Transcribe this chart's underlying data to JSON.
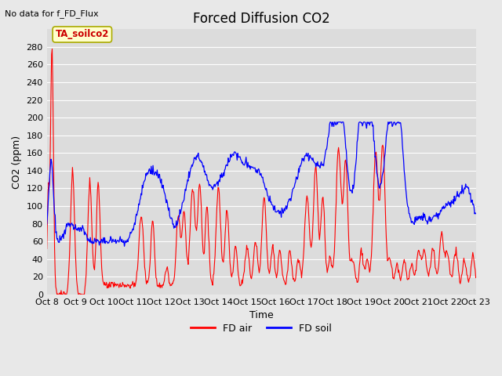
{
  "title": "Forced Diffusion CO2",
  "top_left_text": "No data for f_FD_Flux",
  "annotation_text": "TA_soilco2",
  "xlabel": "Time",
  "ylabel": "CO2 (ppm)",
  "ylim": [
    0,
    300
  ],
  "yticks": [
    0,
    20,
    40,
    60,
    80,
    100,
    120,
    140,
    160,
    180,
    200,
    220,
    240,
    260,
    280
  ],
  "x_tick_labels": [
    "Oct 8",
    "Oct 9",
    "Oct 10",
    "Oct 11",
    "Oct 12",
    "Oct 13",
    "Oct 14",
    "Oct 15",
    "Oct 16",
    "Oct 17",
    "Oct 18",
    "Oct 19",
    "Oct 20",
    "Oct 21",
    "Oct 22",
    "Oct 23"
  ],
  "red_label": "FD air",
  "blue_label": "FD soil",
  "red_color": "#ff0000",
  "blue_color": "#0000ff",
  "fig_bg_color": "#e8e8e8",
  "plot_bg_color": "#dcdcdc",
  "grid_color": "#ffffff",
  "annotation_bbox_facecolor": "#ffffcc",
  "annotation_bbox_edgecolor": "#aaaa00",
  "annotation_text_color": "#cc0000",
  "title_fontsize": 12,
  "label_fontsize": 9,
  "tick_fontsize": 8
}
